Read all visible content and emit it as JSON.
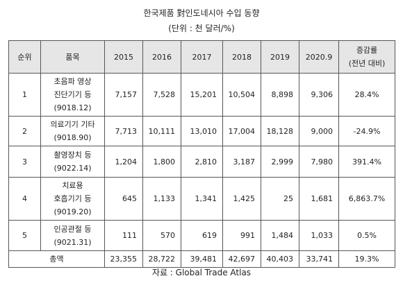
{
  "header": {
    "title": "한국제품 對인도네시아 수입 동향",
    "unit": "(단위 : 천 달러/%)"
  },
  "table": {
    "columns": [
      [
        "순위"
      ],
      [
        "품목"
      ],
      [
        "2015"
      ],
      [
        "2016"
      ],
      [
        "2017"
      ],
      [
        "2018"
      ],
      [
        "2019"
      ],
      [
        "2020.9"
      ],
      [
        "증감률",
        "(전년 대비)"
      ]
    ],
    "rows": [
      {
        "rank": "1",
        "item": [
          "초음파 영상",
          "진단기기 등",
          "(9018.12)"
        ],
        "values": [
          "7,157",
          "7,528",
          "15,201",
          "10,504",
          "8,898",
          "9,306",
          "28.4%"
        ]
      },
      {
        "rank": "2",
        "item": [
          "의료기기 기타",
          "(9018.90)"
        ],
        "values": [
          "7,713",
          "10,111",
          "13,010",
          "17,004",
          "18,128",
          "9,000",
          "-24.9%"
        ]
      },
      {
        "rank": "3",
        "item": [
          "촬영장치 등",
          "(9022.14)"
        ],
        "values": [
          "1,204",
          "1,800",
          "2,810",
          "3,187",
          "2,999",
          "7,980",
          "391.4%"
        ]
      },
      {
        "rank": "4",
        "item": [
          "치료용",
          "호흡기기 등",
          "(9019.20)"
        ],
        "values": [
          "645",
          "1,133",
          "1,341",
          "1,425",
          "25",
          "1,681",
          "6,863.7%"
        ]
      },
      {
        "rank": "5",
        "item": [
          "인공관절 등",
          "(9021.31)"
        ],
        "values": [
          "111",
          "570",
          "619",
          "991",
          "1,484",
          "1,033",
          "0.5%"
        ]
      }
    ],
    "total": {
      "label": "총액",
      "values": [
        "23,355",
        "28,722",
        "39,481",
        "42,697",
        "40,403",
        "33,741",
        "19.3%"
      ]
    }
  },
  "footer": {
    "source": "자료 : Global Trade Atlas"
  }
}
